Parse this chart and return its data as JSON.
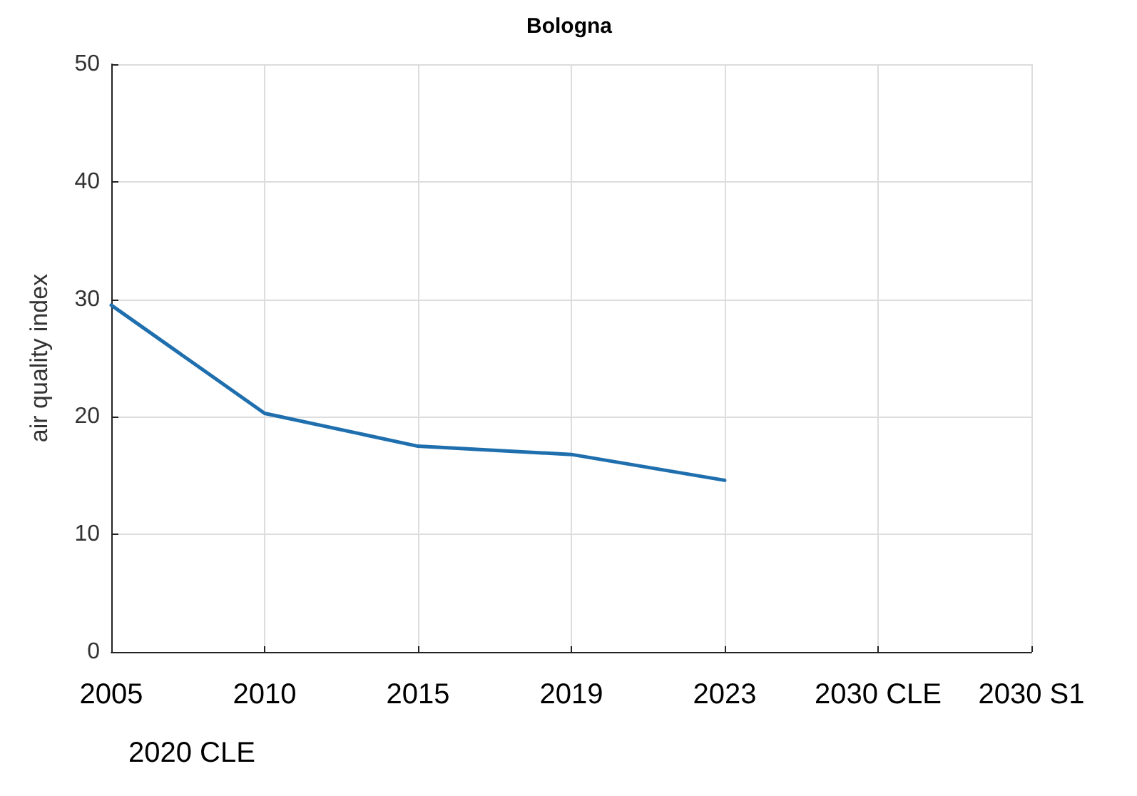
{
  "chart_data": {
    "type": "line",
    "title": "Bologna",
    "ylabel": "air quality index",
    "categories": [
      "2005",
      "2010",
      "2015",
      "2019",
      "2023",
      "2030 CLE",
      "2030 S1"
    ],
    "series": [
      {
        "color": "#1f6fae",
        "values": [
          29.5,
          20.3,
          17.5,
          16.8,
          14.6,
          null,
          null
        ]
      }
    ],
    "ylim": [
      0,
      50
    ],
    "yticks": [
      0,
      10,
      20,
      30,
      40,
      50
    ],
    "grid": true,
    "marker": "none",
    "line_style": "solid",
    "annotations": [
      "2020 CLE"
    ]
  }
}
